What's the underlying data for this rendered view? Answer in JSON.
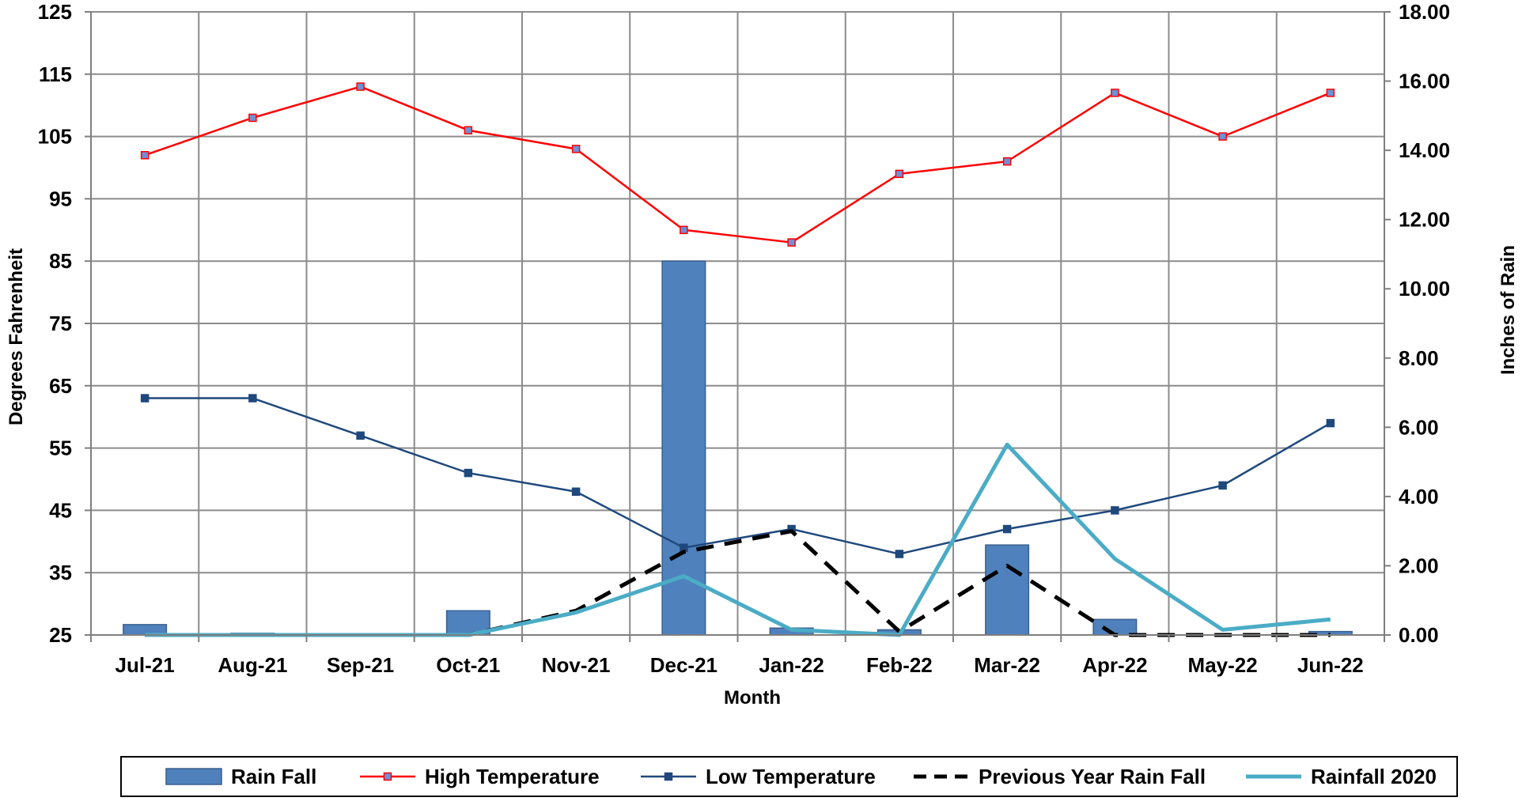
{
  "chart_data": {
    "type": "bar",
    "title": "",
    "xlabel": "Month",
    "ylabel": "Degrees Fahrenheit",
    "y2label": "Inches of Rain",
    "categories": [
      "Jul-21",
      "Aug-21",
      "Sep-21",
      "Oct-21",
      "Nov-21",
      "Dec-21",
      "Jan-22",
      "Feb-22",
      "Mar-22",
      "Apr-22",
      "May-22",
      "Jun-22"
    ],
    "ylim": [
      25,
      125
    ],
    "yticks": [
      "125",
      "115",
      "105",
      "95",
      "85",
      "75",
      "65",
      "55",
      "45",
      "35",
      "25"
    ],
    "y2lim": [
      0,
      18
    ],
    "y2ticks": [
      "18.00",
      "16.00",
      "14.00",
      "12.00",
      "10.00",
      "8.00",
      "6.00",
      "4.00",
      "2.00",
      "0.00"
    ],
    "grid": true,
    "legend_position": "bottom",
    "series": [
      {
        "name": "Rain Fall",
        "type": "bar",
        "axis": "right",
        "color": "#4F81BD",
        "values": [
          0.3,
          0.05,
          0.0,
          0.7,
          0.0,
          10.8,
          0.2,
          0.15,
          2.6,
          0.45,
          0.0,
          0.1
        ]
      },
      {
        "name": "High Temperature",
        "type": "line",
        "axis": "left",
        "color": "#FF0000",
        "marker": "square",
        "values": [
          102,
          108,
          113,
          106,
          103,
          90,
          88,
          99,
          101,
          112,
          105,
          112
        ]
      },
      {
        "name": "Low Temperature",
        "type": "line",
        "axis": "left",
        "color": "#1F497D",
        "marker": "square",
        "values": [
          63,
          63,
          57,
          51,
          48,
          39,
          42,
          38,
          42,
          45,
          49,
          59
        ]
      },
      {
        "name": "Previous Year Rain Fall",
        "type": "line",
        "axis": "right",
        "color": "#000000",
        "dashed": true,
        "values": [
          0.0,
          0.0,
          0.0,
          0.0,
          0.7,
          2.4,
          3.0,
          0.1,
          2.0,
          0.0,
          0.0,
          0.0
        ]
      },
      {
        "name": "Rainfall 2020",
        "type": "line",
        "axis": "right",
        "color": "#4BACC6",
        "values": [
          0.0,
          0.0,
          0.0,
          0.0,
          0.65,
          1.7,
          0.15,
          0.0,
          5.5,
          2.2,
          0.15,
          0.45
        ]
      }
    ]
  }
}
